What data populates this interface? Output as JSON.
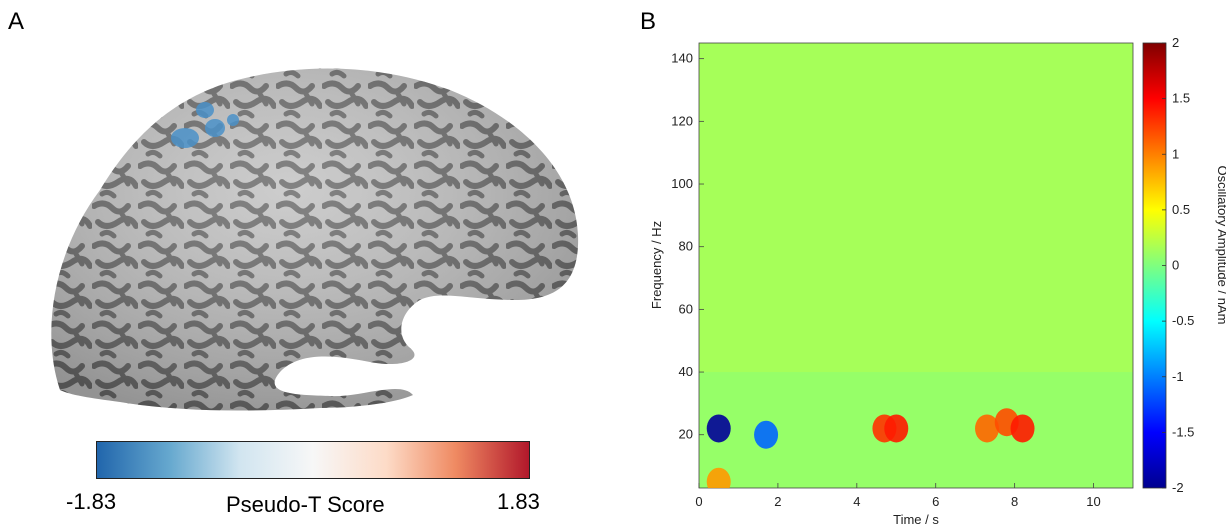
{
  "panels": {
    "a_label": "A",
    "b_label": "B"
  },
  "brain_colorbar": {
    "min_label": "-1.83",
    "max_label": "1.83",
    "title": "Pseudo-T Score",
    "colors": [
      "#2166ac",
      "#67a9cf",
      "#d1e5f0",
      "#f7f7f7",
      "#fddbc7",
      "#ef8a62",
      "#b2182b"
    ]
  },
  "chart_data": {
    "type": "heatmap",
    "xlabel": "Time / s",
    "ylabel": "Frequency / Hz",
    "colorbar_label": "Oscillatory Amplitude / nAm",
    "xlim": [
      0,
      11
    ],
    "ylim": [
      3,
      145
    ],
    "clim": [
      -2,
      2
    ],
    "x_ticks": [
      0,
      2,
      4,
      6,
      8,
      10
    ],
    "y_ticks": [
      20,
      40,
      60,
      80,
      100,
      120,
      140
    ],
    "colorbar_ticks": [
      -2,
      -1.5,
      -1,
      -0.5,
      0,
      0.5,
      1,
      1.5,
      2
    ],
    "colormap": "jet",
    "features": [
      {
        "t": 0.5,
        "f": 22,
        "value": -1.9
      },
      {
        "t": 0.5,
        "f": 5,
        "value": 0.9
      },
      {
        "t": 1.7,
        "f": 20,
        "value": -1.1
      },
      {
        "t": 4.7,
        "f": 22,
        "value": 1.3
      },
      {
        "t": 5.0,
        "f": 22,
        "value": 1.4
      },
      {
        "t": 7.3,
        "f": 22,
        "value": 1.1
      },
      {
        "t": 7.8,
        "f": 24,
        "value": 1.2
      },
      {
        "t": 8.2,
        "f": 22,
        "value": 1.4
      }
    ]
  }
}
